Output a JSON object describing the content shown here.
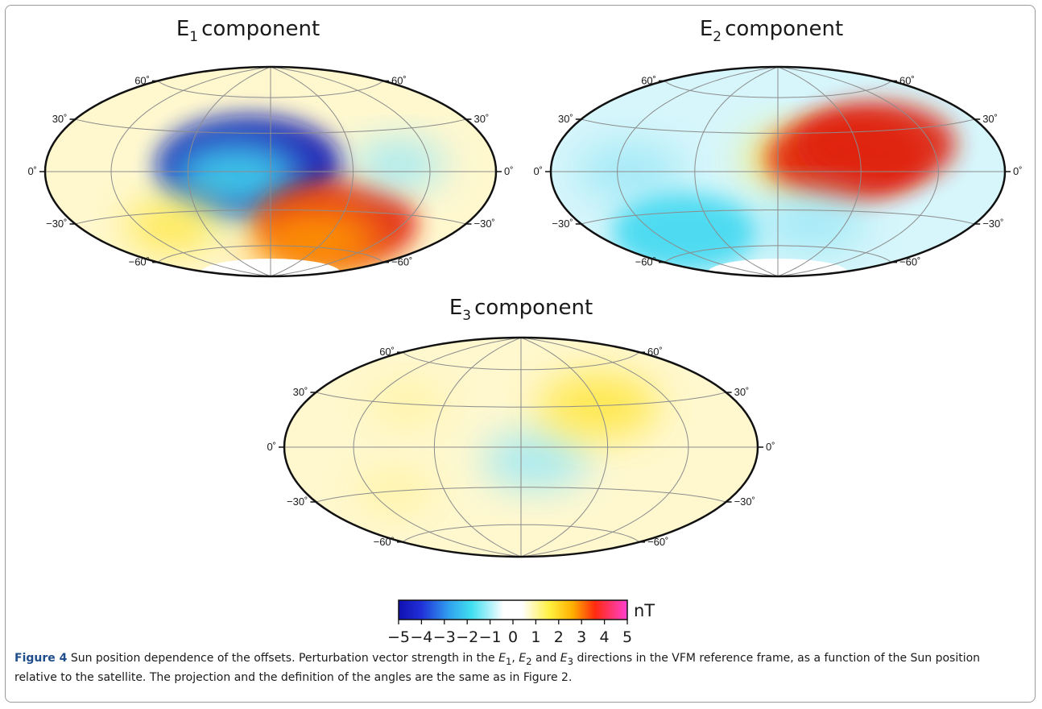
{
  "figure": {
    "label": "Figure 4",
    "caption_lead": "Sun position dependence of the offsets. Perturbation vector strength in the",
    "caption_dir1": "E",
    "caption_sub1": "1",
    "caption_sep1": ",",
    "caption_dir2": "E",
    "caption_sub2": "2",
    "caption_sep2": "and",
    "caption_dir3": "E",
    "caption_sub3": "3",
    "caption_tail": "directions in the VFM reference frame, as a function of the Sun position relative to the satellite. The projection and the definition of the angles are the same as in Figure 2."
  },
  "colors": {
    "neg5": "#1010b0",
    "neg3": "#40d8f0",
    "zero": "#ffffff",
    "pos2": "#ffe640",
    "pos3": "#ff9800",
    "pos4": "#e02010",
    "pos5": "#ff40c0",
    "graticule": "#8c8c8c",
    "outline": "#111111"
  },
  "chart_data": [
    {
      "type": "heatmap",
      "projection": "Hammer-Aitoff",
      "title_main": "E",
      "title_sub": "1",
      "title_rest": "component",
      "lat_labels": [
        "60˚",
        "30˚",
        "0˚",
        "−30˚",
        "−60˚"
      ],
      "features": [
        {
          "lon": -15,
          "lat": 5,
          "value": -5
        },
        {
          "lon": -25,
          "lat": -3,
          "value": -3
        },
        {
          "lon": 60,
          "lat": -40,
          "value": 4
        },
        {
          "lon": 50,
          "lat": -55,
          "value": 3
        },
        {
          "lon": -90,
          "lat": -40,
          "value": 1.5
        },
        {
          "lon": 95,
          "lat": 5,
          "value": -1.5
        }
      ]
    },
    {
      "type": "heatmap",
      "projection": "Hammer-Aitoff",
      "title_main": "E",
      "title_sub": "2",
      "title_rest": "component",
      "lat_labels": [
        "60˚",
        "30˚",
        "0˚",
        "−30˚",
        "−60˚"
      ],
      "features": [
        {
          "lon": 15,
          "lat": 10,
          "value": 2
        },
        {
          "lon": 50,
          "lat": 10,
          "value": 4
        },
        {
          "lon": 75,
          "lat": 20,
          "value": 4
        },
        {
          "lon": -110,
          "lat": 0,
          "value": -2
        },
        {
          "lon": -90,
          "lat": -45,
          "value": -3.5
        },
        {
          "lon": 30,
          "lat": -40,
          "value": -2
        }
      ]
    },
    {
      "type": "heatmap",
      "projection": "Hammer-Aitoff",
      "title_main": "E",
      "title_sub": "3",
      "title_rest": "component",
      "lat_labels": [
        "60˚",
        "30˚",
        "0˚",
        "−30˚",
        "−60˚"
      ],
      "features": [
        {
          "lon": 10,
          "lat": -10,
          "value": -2
        },
        {
          "lon": 60,
          "lat": 30,
          "value": 2.5
        },
        {
          "lon": -90,
          "lat": 30,
          "value": 1
        },
        {
          "lon": -100,
          "lat": -30,
          "value": 1
        }
      ]
    }
  ],
  "colorbar": {
    "unit": "nT",
    "min": -5,
    "max": 5,
    "tick_labels": [
      "−5",
      "−4",
      "−3",
      "−2",
      "−1",
      "0",
      "1",
      "2",
      "3",
      "4",
      "5"
    ]
  }
}
